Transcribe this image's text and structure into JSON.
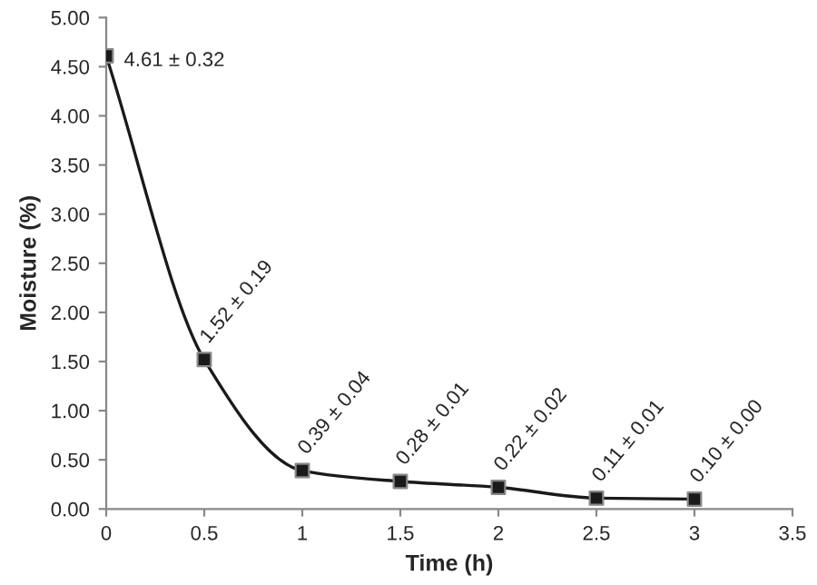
{
  "chart_data": {
    "type": "line",
    "xlabel": "Time (h)",
    "ylabel": "Moisture (%)",
    "x": [
      0,
      0.5,
      1,
      1.5,
      2,
      2.5,
      3
    ],
    "series": [
      {
        "color": "#1a1a1a",
        "values": [
          4.61,
          1.52,
          0.39,
          0.28,
          0.22,
          0.11,
          0.1
        ],
        "value_labels": [
          "4.61 ± 0.32",
          "1.52 ± 0.19",
          "0.39 ± 0.04",
          "0.28 ± 0.01",
          "0.22 ± 0.02",
          "0.11 ± 0.01",
          "0.10 ± 0.00"
        ]
      }
    ],
    "marker": "square",
    "line_style": "solid",
    "grid": false,
    "xlim": [
      0,
      3.5
    ],
    "xticks": [
      0,
      0.5,
      1,
      1.5,
      2,
      2.5,
      3,
      3.5
    ],
    "ylim": [
      0,
      5
    ],
    "yticks": [
      {
        "value": 0,
        "label": "0.00"
      },
      {
        "value": 0.5,
        "label": "0.50"
      },
      {
        "value": 1,
        "label": "1.00"
      },
      {
        "value": 1.5,
        "label": "1.50"
      },
      {
        "value": 2,
        "label": "2.00"
      },
      {
        "value": 2.5,
        "label": "2.50"
      },
      {
        "value": 3,
        "label": "3.00"
      },
      {
        "value": 3.5,
        "label": "3.50"
      },
      {
        "value": 4,
        "label": "4.00"
      },
      {
        "value": 4.5,
        "label": "4.50"
      },
      {
        "value": 5,
        "label": "5.00"
      }
    ]
  }
}
